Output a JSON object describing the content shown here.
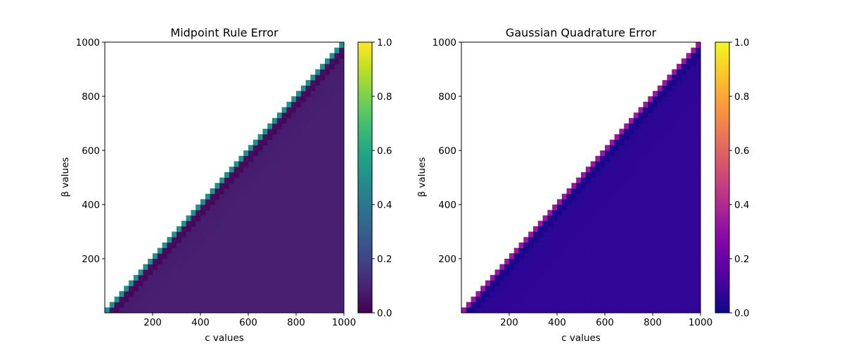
{
  "chart_data": [
    {
      "type": "heatmap",
      "title": "Midpoint Rule Error",
      "xlabel": "c values",
      "ylabel": "β values",
      "xlim": [
        0,
        1000
      ],
      "ylim": [
        0,
        1000
      ],
      "xticks": [
        "200",
        "400",
        "600",
        "800",
        "1000"
      ],
      "yticks": [
        "200",
        "400",
        "600",
        "800",
        "1000"
      ],
      "grid_size": 50,
      "masked_region": "β > c",
      "colormap": "viridis",
      "colorbar_range": [
        0,
        1
      ],
      "colorbar_ticks": [
        "0.0",
        "0.2",
        "0.4",
        "0.6",
        "0.8",
        "1.0"
      ],
      "edge_value": 0.5,
      "dip_value": 0.02,
      "interior_value": 0.09
    },
    {
      "type": "heatmap",
      "title": "Gaussian Quadrature Error",
      "xlabel": "c values",
      "ylabel": "β values",
      "xlim": [
        0,
        1000
      ],
      "ylim": [
        0,
        1000
      ],
      "xticks": [
        "200",
        "400",
        "600",
        "800",
        "1000"
      ],
      "yticks": [
        "200",
        "400",
        "600",
        "800",
        "1000"
      ],
      "grid_size": 50,
      "masked_region": "β > c",
      "colormap": "plasma",
      "colorbar_range": [
        0,
        1
      ],
      "colorbar_ticks": [
        "0.0",
        "0.2",
        "0.4",
        "0.6",
        "0.8",
        "1.0"
      ],
      "edge_value": 0.33,
      "dip_value": 0.02,
      "interior_value": 0.07
    }
  ]
}
